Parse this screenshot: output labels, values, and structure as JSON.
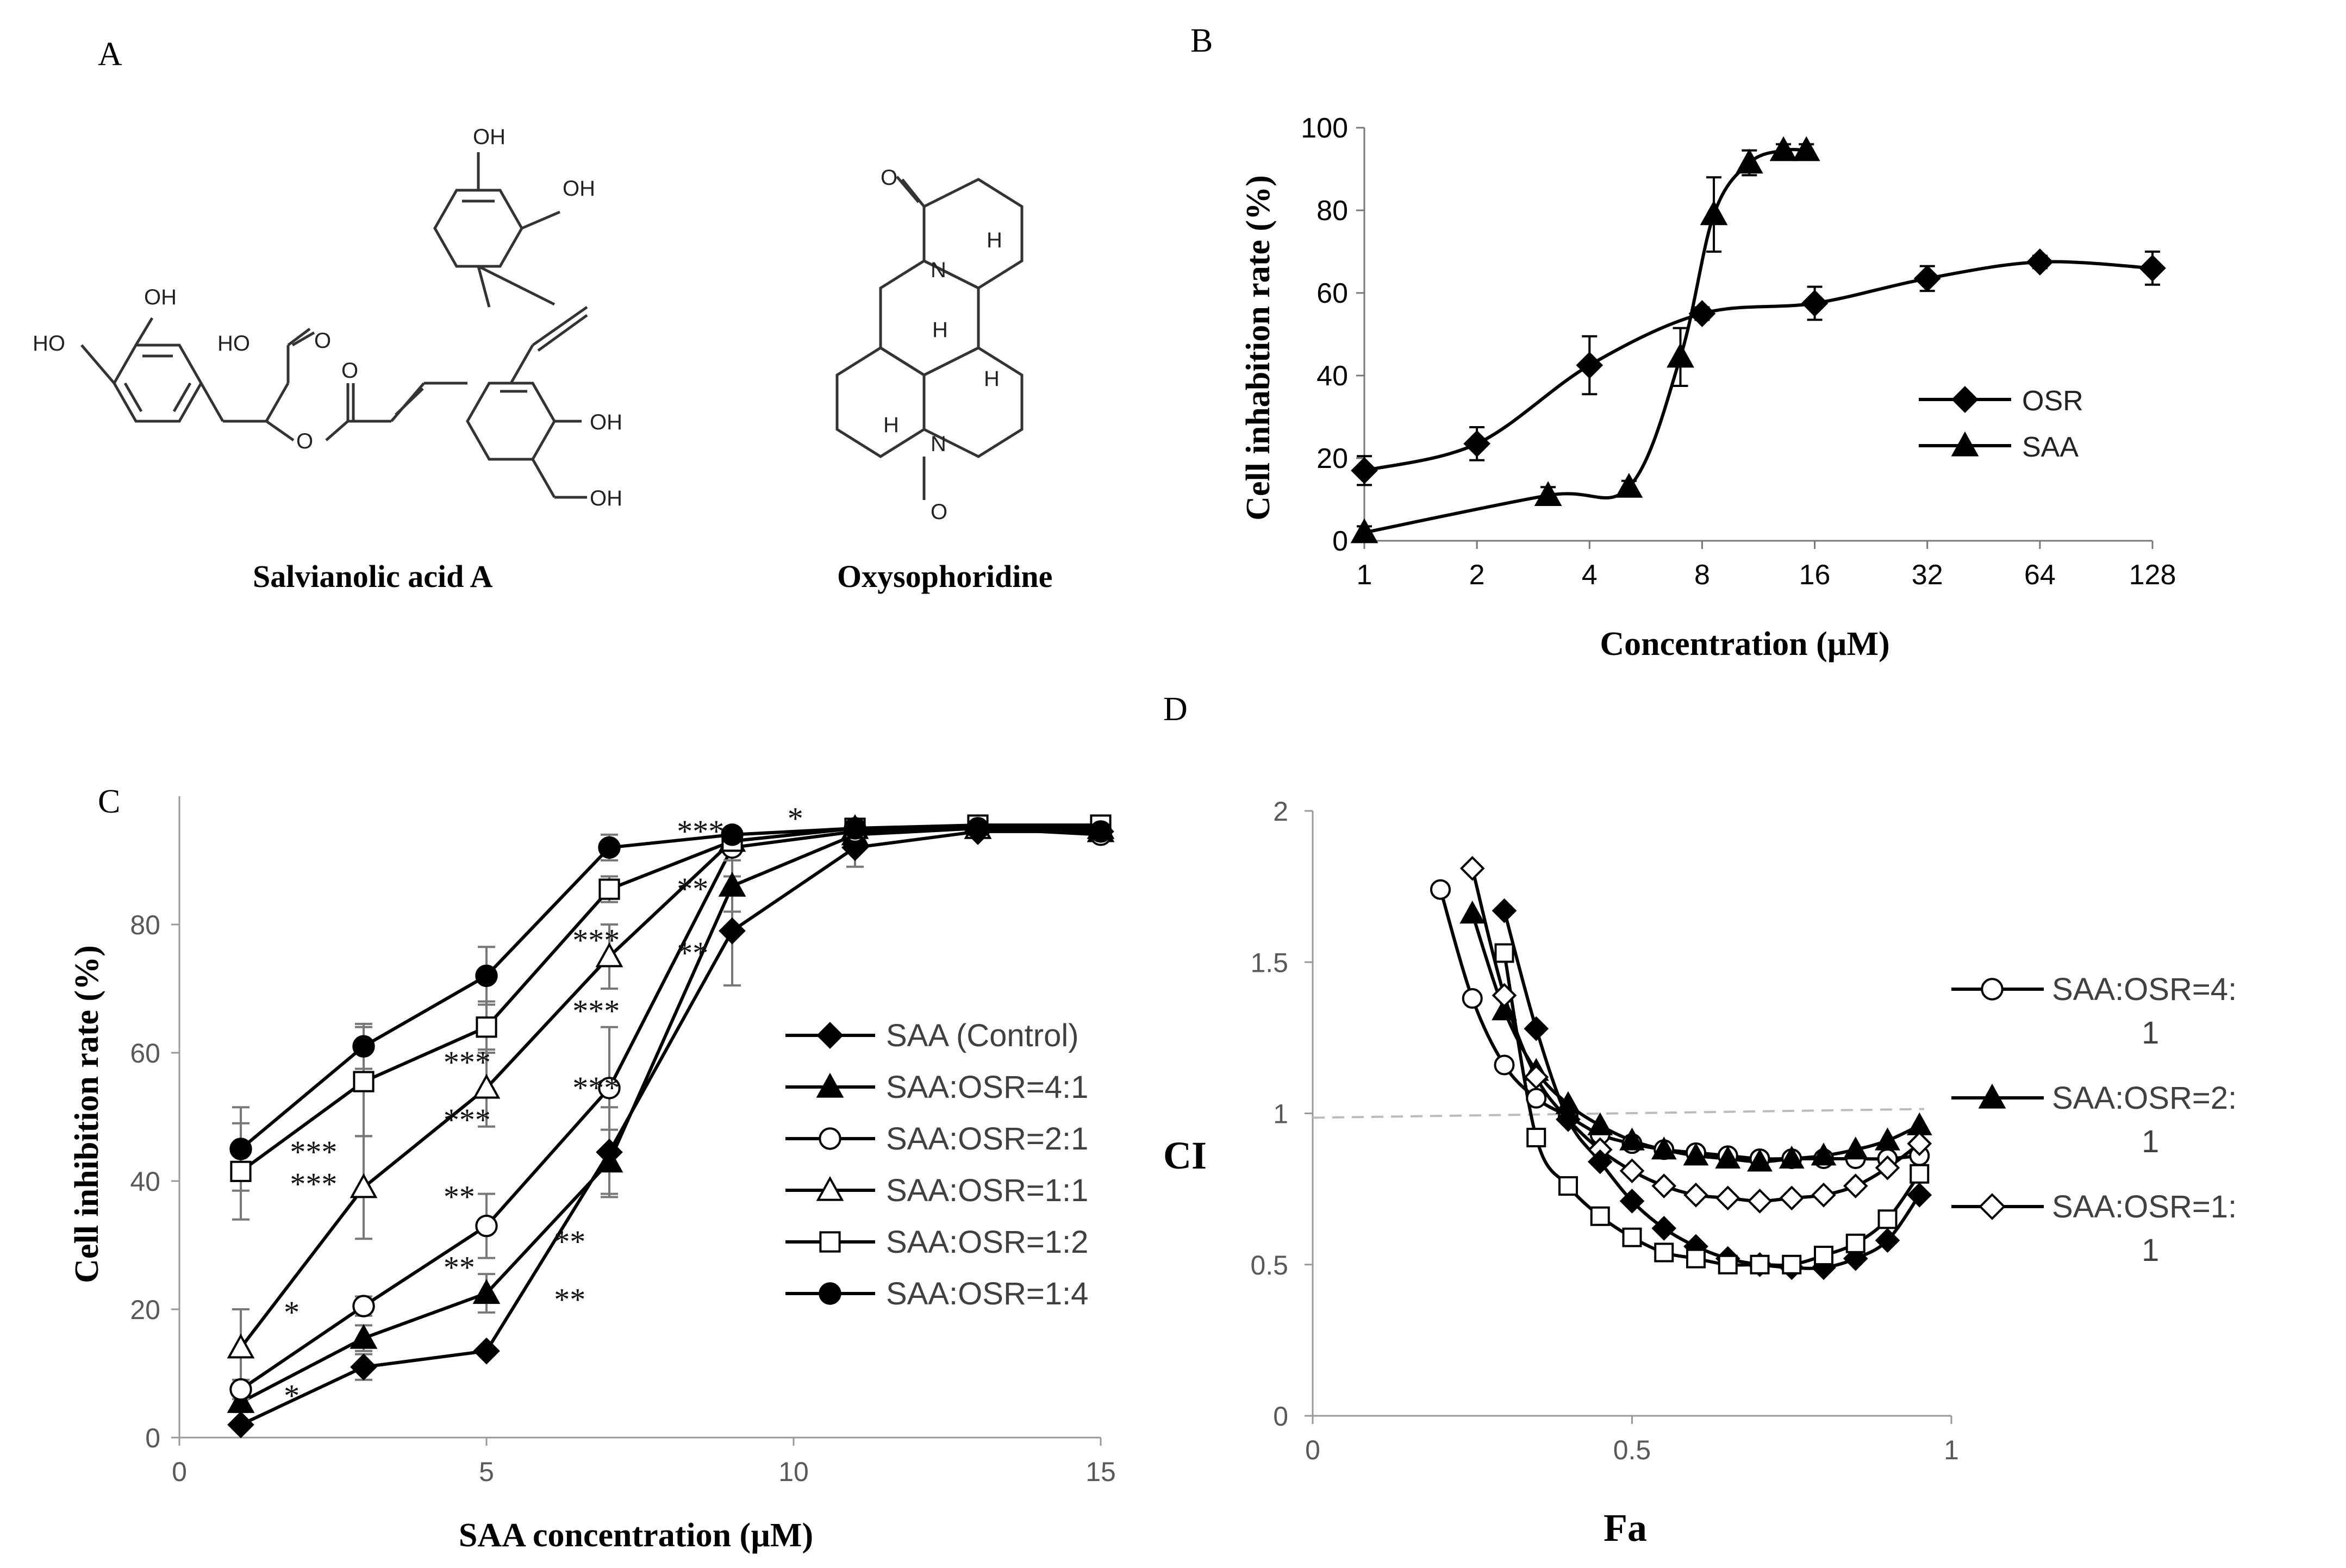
{
  "panels": {
    "A": {
      "letter": "A",
      "compound1": "Salvianolic acid A",
      "compound2": "Oxysophoridine",
      "atoms": {
        "oh": "OH",
        "ho": "HO",
        "o": "O",
        "n": "N",
        "h": "H"
      }
    },
    "B": {
      "letter": "B"
    },
    "C": {
      "letter": "C"
    },
    "D": {
      "letter": "D"
    }
  },
  "chart_data": [
    {
      "id": "B",
      "type": "line",
      "xscale": "log2",
      "xlabel": "Concentration (µM)",
      "ylabel": "Cell inhabition rate (%)",
      "xticks": [
        "1",
        "2",
        "4",
        "8",
        "16",
        "32",
        "64",
        "128"
      ],
      "xtick_values": [
        1,
        2,
        4,
        8,
        16,
        32,
        64,
        128
      ],
      "yticks": [
        "0",
        "20",
        "40",
        "60",
        "80",
        "100"
      ],
      "ylim": [
        0,
        100
      ],
      "legend_position": "center-right",
      "series": [
        {
          "name": "OSR",
          "marker": "diamond",
          "x": [
            1,
            2,
            4,
            8,
            16,
            32,
            64,
            128
          ],
          "y": [
            17,
            23.5,
            42.5,
            55,
            57.5,
            63.5,
            67.5,
            66
          ],
          "err": [
            3.5,
            4,
            7,
            1.5,
            4,
            3,
            1.5,
            4
          ]
        },
        {
          "name": "SAA",
          "marker": "triangle",
          "x": [
            1,
            3,
            5,
            7,
            9,
            11,
            13,
            15
          ],
          "y": [
            2,
            11,
            13,
            44.5,
            79,
            91.5,
            94.5,
            94.5
          ],
          "err": [
            1.5,
            2,
            1.5,
            7,
            9,
            3,
            1.5,
            1.5
          ]
        }
      ]
    },
    {
      "id": "C",
      "type": "line",
      "xlabel": "SAA concentration (µM)",
      "ylabel": "Cell inhibition rate (%)",
      "xticks": [
        "0",
        "5",
        "10",
        "15"
      ],
      "yticks": [
        "0",
        "20",
        "40",
        "60",
        "80"
      ],
      "xlim": [
        0,
        15
      ],
      "ylim": [
        0,
        100
      ],
      "legend_position": "right",
      "significance": [
        {
          "x": 1.8,
          "y": 40,
          "text": "***"
        },
        {
          "x": 1.8,
          "y": 45,
          "text": "***"
        },
        {
          "x": 1.7,
          "y": 20,
          "text": "*"
        },
        {
          "x": 1.7,
          "y": 7,
          "text": "*"
        },
        {
          "x": 4.3,
          "y": 59,
          "text": "***"
        },
        {
          "x": 4.3,
          "y": 50,
          "text": "***"
        },
        {
          "x": 4.3,
          "y": 38,
          "text": "**"
        },
        {
          "x": 4.3,
          "y": 27,
          "text": "**"
        },
        {
          "x": 6.4,
          "y": 78,
          "text": "***"
        },
        {
          "x": 6.4,
          "y": 67,
          "text": "***"
        },
        {
          "x": 6.4,
          "y": 55,
          "text": "***"
        },
        {
          "x": 6.1,
          "y": 31,
          "text": "**"
        },
        {
          "x": 6.1,
          "y": 22,
          "text": "**"
        },
        {
          "x": 8.1,
          "y": 95,
          "text": "***"
        },
        {
          "x": 8.1,
          "y": 86,
          "text": "**"
        },
        {
          "x": 8.1,
          "y": 76,
          "text": "**"
        },
        {
          "x": 9.9,
          "y": 97,
          "text": "*"
        }
      ],
      "series": [
        {
          "name": "SAA (Control)",
          "marker": "diamond-filled",
          "x": [
            1,
            3,
            5,
            7,
            9,
            11,
            13,
            15
          ],
          "y": [
            2,
            11,
            13.5,
            44.5,
            79,
            92,
            94.5,
            94.5
          ],
          "err": [
            1,
            2,
            1,
            7,
            8.5,
            3,
            1,
            1
          ]
        },
        {
          "name": "SAA:OSR=4:1",
          "marker": "triangle-filled",
          "x": [
            1,
            3,
            5,
            7,
            9,
            11,
            13,
            15
          ],
          "y": [
            5.5,
            15.5,
            22.5,
            43,
            86,
            94,
            95,
            94.5
          ],
          "err": [
            1.5,
            2,
            3,
            5,
            4,
            2,
            1,
            1
          ]
        },
        {
          "name": "SAA:OSR=2:1",
          "marker": "circle-open",
          "x": [
            1,
            3,
            5,
            7,
            9,
            11,
            13,
            15
          ],
          "y": [
            7.5,
            20.5,
            33,
            54.5,
            92,
            94.5,
            95,
            94
          ],
          "err": [
            1.5,
            1.5,
            5,
            9.5,
            2,
            1,
            1,
            1
          ]
        },
        {
          "name": "SAA:OSR=1:1",
          "marker": "triangle-open",
          "x": [
            1,
            3,
            5,
            7,
            9,
            11,
            13,
            15
          ],
          "y": [
            14,
            39,
            54.5,
            75,
            93,
            95,
            95,
            95
          ],
          "err": [
            6,
            8,
            6,
            5,
            2,
            1,
            1,
            1
          ]
        },
        {
          "name": "SAA:OSR=1:2",
          "marker": "square-open",
          "x": [
            1,
            3,
            5,
            7,
            9,
            11,
            13,
            15
          ],
          "y": [
            41.5,
            55.5,
            64,
            85.5,
            93,
            95,
            95.5,
            95.5
          ],
          "err": [
            7.5,
            8.5,
            4,
            2,
            2,
            1,
            1,
            1
          ]
        },
        {
          "name": "SAA:OSR=1:4",
          "marker": "circle-filled",
          "x": [
            1,
            3,
            5,
            7,
            9,
            11,
            13,
            15
          ],
          "y": [
            45,
            61,
            72,
            92,
            94,
            95,
            95,
            94.5
          ],
          "err": [
            6.5,
            3.5,
            4.5,
            2,
            1,
            1,
            1,
            1
          ]
        }
      ]
    },
    {
      "id": "D",
      "type": "scatter",
      "xlabel": "Fa",
      "ylabel": "CI",
      "xticks": [
        "0",
        "0.5",
        "1"
      ],
      "yticks": [
        "0",
        "0.5",
        "1",
        "1.5",
        "2"
      ],
      "xlim": [
        0,
        1
      ],
      "ylim": [
        0,
        2
      ],
      "reference_line": 1.0,
      "legend_position": "right",
      "legend": [
        {
          "line1": "SAA:OSR=4:",
          "line2": "1",
          "marker": "circle-open"
        },
        {
          "line1": "SAA:OSR=2:",
          "line2": "1",
          "marker": "triangle-filled"
        },
        {
          "line1": "SAA:OSR=1:",
          "line2": "1",
          "marker": "diamond-open"
        }
      ],
      "series": [
        {
          "name": "circle-open",
          "marker": "circle-open",
          "x": [
            0.2,
            0.25,
            0.3,
            0.35,
            0.4,
            0.45,
            0.5,
            0.55,
            0.6,
            0.65,
            0.7,
            0.75,
            0.8,
            0.85,
            0.9,
            0.95
          ],
          "y": [
            1.74,
            1.38,
            1.16,
            1.05,
            0.99,
            0.93,
            0.9,
            0.88,
            0.87,
            0.86,
            0.85,
            0.85,
            0.85,
            0.85,
            0.85,
            0.86
          ]
        },
        {
          "name": "triangle-filled",
          "marker": "triangle-filled",
          "x": [
            0.25,
            0.3,
            0.35,
            0.4,
            0.45,
            0.5,
            0.55,
            0.6,
            0.65,
            0.7,
            0.75,
            0.8,
            0.85,
            0.9,
            0.95
          ],
          "y": [
            1.66,
            1.34,
            1.14,
            1.03,
            0.96,
            0.91,
            0.88,
            0.86,
            0.85,
            0.84,
            0.85,
            0.86,
            0.88,
            0.91,
            0.96
          ]
        },
        {
          "name": "diamond-open",
          "marker": "diamond-open",
          "x": [
            0.25,
            0.3,
            0.35,
            0.4,
            0.45,
            0.5,
            0.55,
            0.6,
            0.65,
            0.7,
            0.75,
            0.8,
            0.85,
            0.9,
            0.95
          ],
          "y": [
            1.81,
            1.39,
            1.12,
            0.98,
            0.88,
            0.81,
            0.76,
            0.73,
            0.72,
            0.71,
            0.72,
            0.73,
            0.76,
            0.82,
            0.9
          ]
        },
        {
          "name": "diamond-filled",
          "marker": "diamond-filled",
          "x": [
            0.3,
            0.35,
            0.4,
            0.45,
            0.5,
            0.55,
            0.6,
            0.65,
            0.7,
            0.75,
            0.8,
            0.85,
            0.9,
            0.95
          ],
          "y": [
            1.67,
            1.28,
            0.98,
            0.84,
            0.71,
            0.62,
            0.56,
            0.52,
            0.5,
            0.49,
            0.49,
            0.52,
            0.58,
            0.73
          ]
        },
        {
          "name": "square-open",
          "marker": "square-open",
          "x": [
            0.3,
            0.35,
            0.4,
            0.45,
            0.5,
            0.55,
            0.6,
            0.65,
            0.7,
            0.75,
            0.8,
            0.85,
            0.9,
            0.95
          ],
          "y": [
            1.53,
            0.92,
            0.76,
            0.66,
            0.59,
            0.54,
            0.52,
            0.5,
            0.5,
            0.5,
            0.53,
            0.57,
            0.65,
            0.8
          ]
        }
      ]
    }
  ]
}
